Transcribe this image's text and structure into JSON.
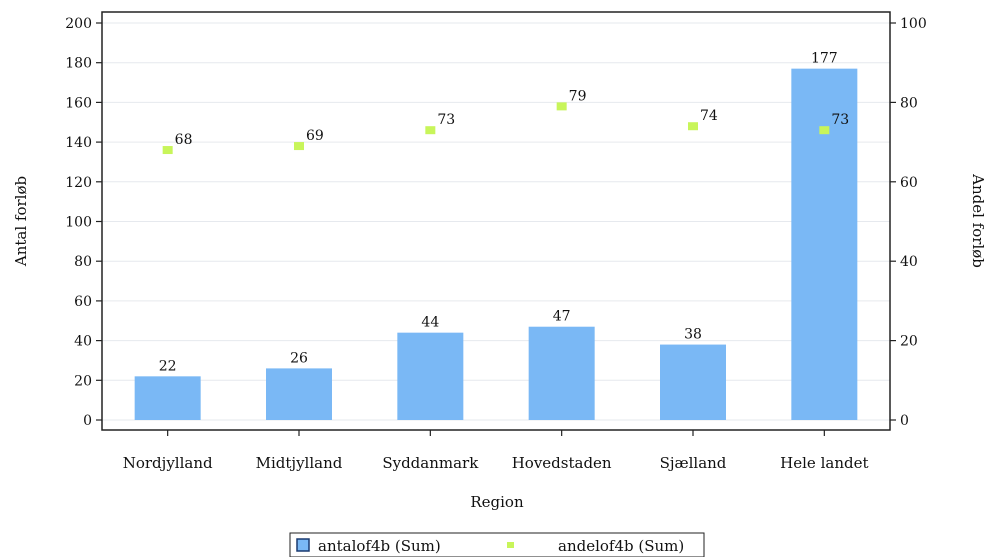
{
  "chart_data": {
    "type": "bar",
    "categories": [
      "Nordjylland",
      "Midtjylland",
      "Syddanmark",
      "Hovedstaden",
      "Sjælland",
      "Hele landet"
    ],
    "series": [
      {
        "name": "antalof4b (Sum)",
        "type": "bar",
        "axis": "left",
        "values": [
          22,
          26,
          44,
          47,
          38,
          177
        ],
        "color": "#7ab8f5"
      },
      {
        "name": "andelof4b (Sum)",
        "type": "scatter",
        "axis": "right",
        "values": [
          68,
          69,
          73,
          79,
          74,
          73
        ],
        "color": "#c8f55a"
      }
    ],
    "xlabel": "Region",
    "ylabel": "Antal forløb",
    "y2label": "Andel forløb",
    "ylim": [
      0,
      200
    ],
    "y2lim": [
      0,
      100
    ],
    "yticks": [
      0,
      20,
      40,
      60,
      80,
      100,
      120,
      140,
      160,
      180,
      200
    ],
    "y2ticks": [
      0,
      20,
      40,
      60,
      80,
      100
    ],
    "grid": true,
    "legend_position": "bottom"
  }
}
